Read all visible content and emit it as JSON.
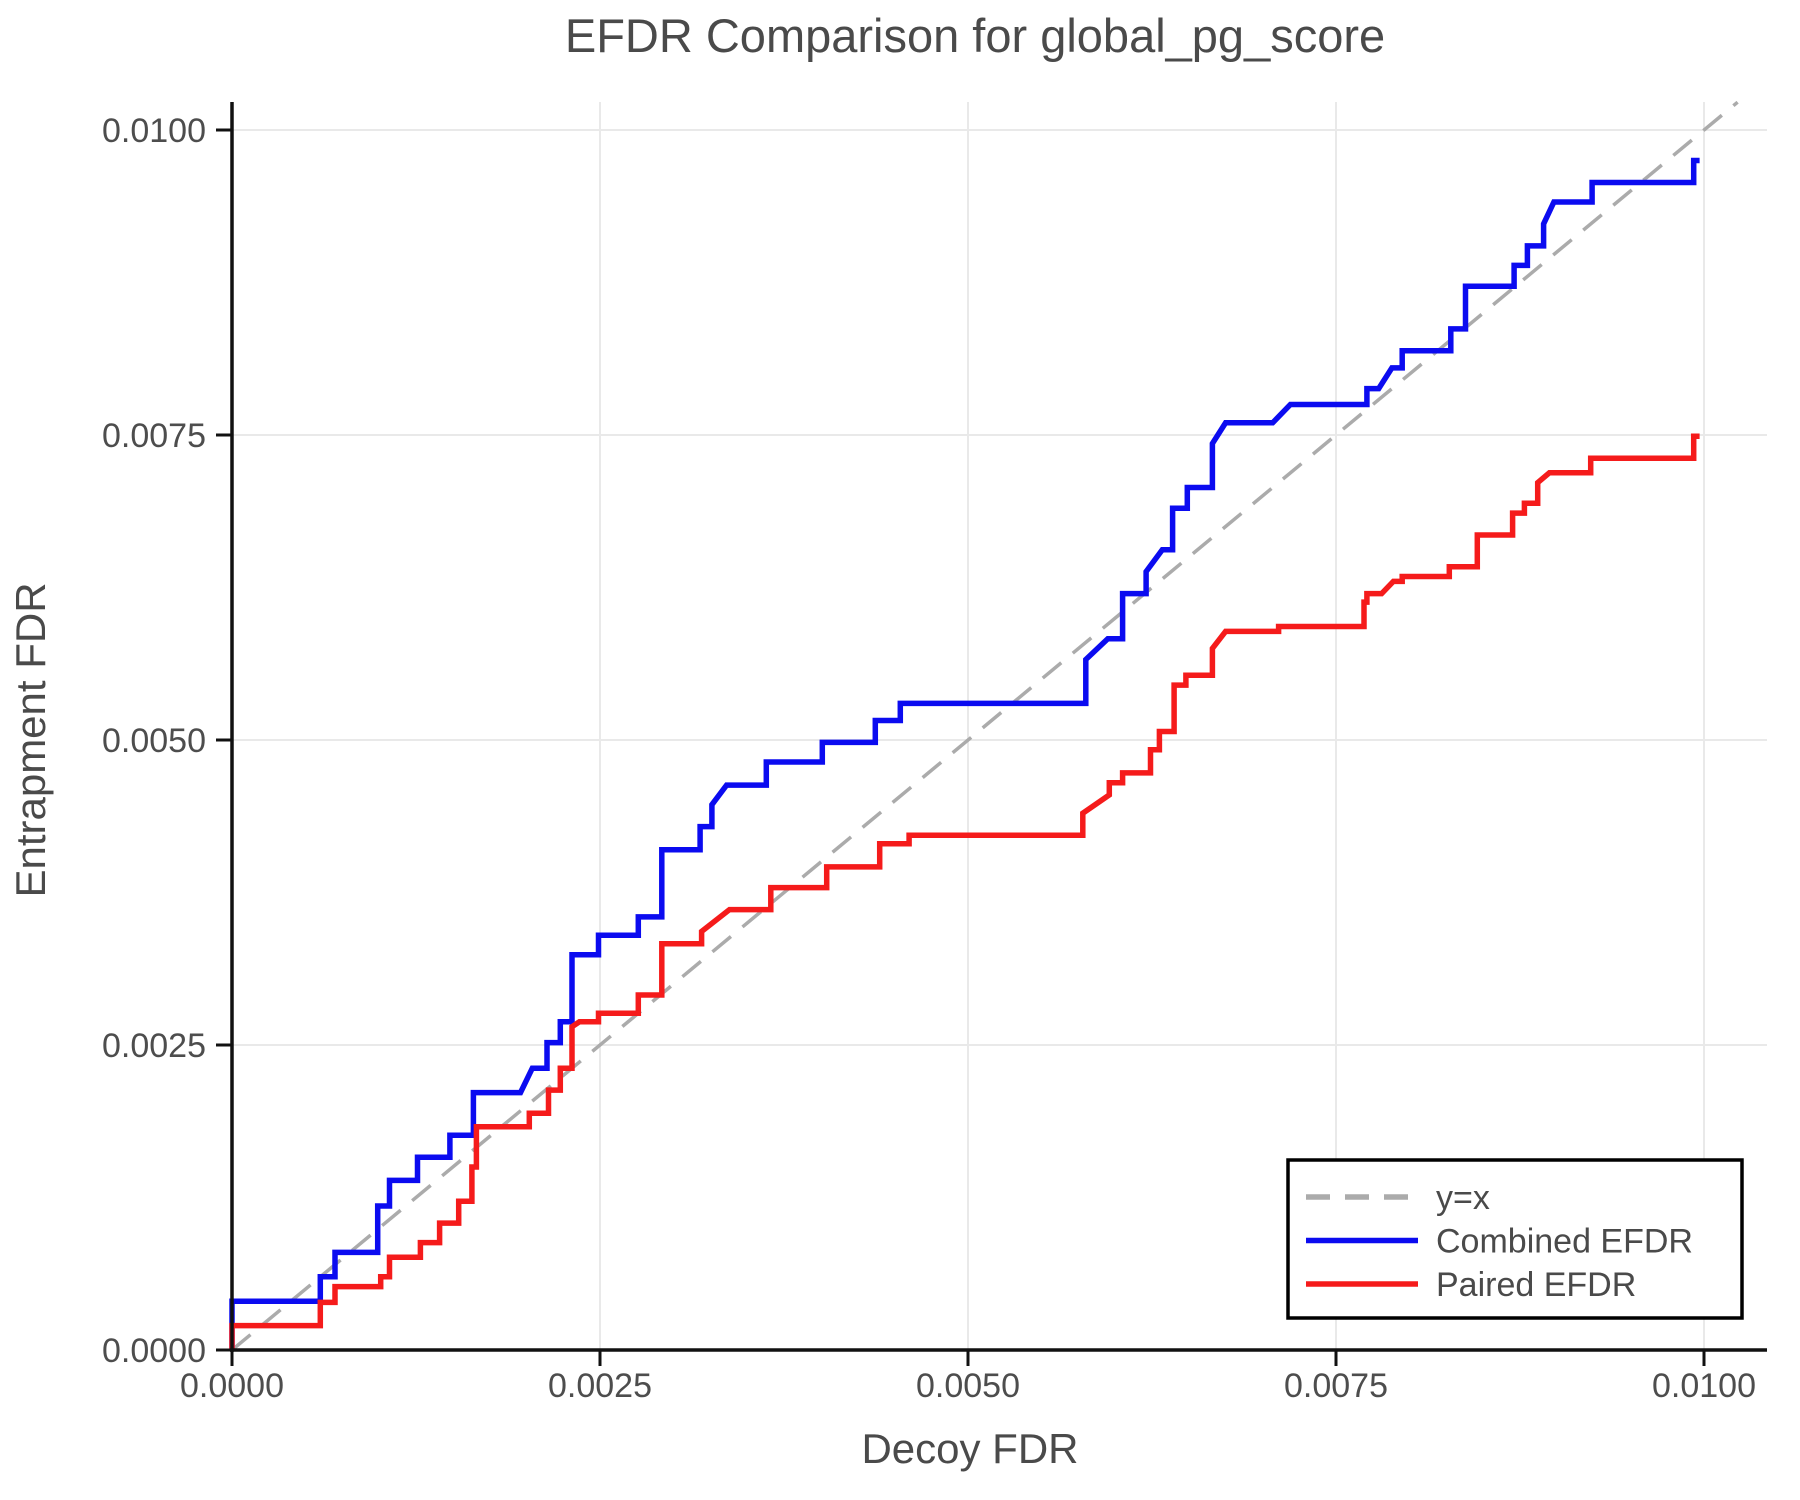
{
  "title": "EFDR Comparison for global_pg_score",
  "chart_data": {
    "type": "line",
    "subtype": "step-curves",
    "title": "EFDR Comparison for global_pg_score",
    "xlabel": "Decoy FDR",
    "ylabel": "Entrapment FDR",
    "xlim": [
      0.0,
      0.01043
    ],
    "ylim": [
      0.0,
      0.01023
    ],
    "grid": true,
    "grid_color": "#e9e9e9",
    "background": "#ffffff",
    "spine_color": "#111111",
    "xticks": {
      "values": [
        0.0,
        0.0025,
        0.005,
        0.0075,
        0.01
      ],
      "labels": [
        "0.0000",
        "0.0025",
        "0.0050",
        "0.0075",
        "0.0100"
      ]
    },
    "yticks": {
      "values": [
        0.0,
        0.0025,
        0.005,
        0.0075,
        0.01
      ],
      "labels": [
        "0.0000",
        "0.0025",
        "0.0050",
        "0.0075",
        "0.0100"
      ]
    },
    "legend": {
      "position": "lower right",
      "border_color": "#000000",
      "items": [
        {
          "label": "y=x",
          "color": "#ababab",
          "dashed": true
        },
        {
          "label": "Combined EFDR",
          "color": "#0b0bf0",
          "dashed": false
        },
        {
          "label": "Paired EFDR",
          "color": "#f51b1b",
          "dashed": false
        }
      ]
    },
    "series": [
      {
        "name": "y=x",
        "role": "reference-line",
        "color": "#ababab",
        "dashed": true,
        "width": 3.5,
        "points": [
          [
            0.0,
            0.0
          ],
          [
            0.010228,
            0.010228
          ]
        ]
      },
      {
        "name": "Combined EFDR",
        "role": "data-line",
        "color": "#0b0bf0",
        "dashed": false,
        "width": 5.5,
        "points": [
          [
            0.0,
            0.0
          ],
          [
            0.0,
            0.0004
          ],
          [
            0.0006,
            0.0004
          ],
          [
            0.0006,
            0.0006
          ],
          [
            0.0007,
            0.0006
          ],
          [
            0.0007,
            0.0008
          ],
          [
            0.00099,
            0.0008
          ],
          [
            0.00099,
            0.00118
          ],
          [
            0.00107,
            0.00118
          ],
          [
            0.00107,
            0.00139
          ],
          [
            0.00126,
            0.00139
          ],
          [
            0.00126,
            0.00158
          ],
          [
            0.00148,
            0.00158
          ],
          [
            0.00148,
            0.00176
          ],
          [
            0.00164,
            0.00176
          ],
          [
            0.00164,
            0.00211
          ],
          [
            0.00196,
            0.00211
          ],
          [
            0.00204,
            0.00231
          ],
          [
            0.00214,
            0.00231
          ],
          [
            0.00214,
            0.00252
          ],
          [
            0.00223,
            0.00252
          ],
          [
            0.00223,
            0.00269
          ],
          [
            0.00231,
            0.00269
          ],
          [
            0.00231,
            0.00324
          ],
          [
            0.00249,
            0.00324
          ],
          [
            0.00249,
            0.0034
          ],
          [
            0.00276,
            0.0034
          ],
          [
            0.00276,
            0.00355
          ],
          [
            0.00292,
            0.00355
          ],
          [
            0.00292,
            0.0041
          ],
          [
            0.00318,
            0.0041
          ],
          [
            0.00318,
            0.00429
          ],
          [
            0.00326,
            0.00429
          ],
          [
            0.00326,
            0.00447
          ],
          [
            0.00336,
            0.00463
          ],
          [
            0.00363,
            0.00463
          ],
          [
            0.00363,
            0.00482
          ],
          [
            0.00401,
            0.00482
          ],
          [
            0.00401,
            0.00498
          ],
          [
            0.00437,
            0.00498
          ],
          [
            0.00437,
            0.00516
          ],
          [
            0.00454,
            0.00516
          ],
          [
            0.00454,
            0.0053
          ],
          [
            0.0058,
            0.0053
          ],
          [
            0.0058,
            0.00566
          ],
          [
            0.00595,
            0.00583
          ],
          [
            0.00605,
            0.00583
          ],
          [
            0.00605,
            0.0062
          ],
          [
            0.00621,
            0.0062
          ],
          [
            0.00621,
            0.00638
          ],
          [
            0.00632,
            0.00656
          ],
          [
            0.00639,
            0.00656
          ],
          [
            0.00639,
            0.0069
          ],
          [
            0.00649,
            0.0069
          ],
          [
            0.00649,
            0.00707
          ],
          [
            0.00666,
            0.00707
          ],
          [
            0.00666,
            0.00743
          ],
          [
            0.00675,
            0.0076
          ],
          [
            0.00707,
            0.0076
          ],
          [
            0.00719,
            0.00775
          ],
          [
            0.00771,
            0.00775
          ],
          [
            0.00771,
            0.00788
          ],
          [
            0.00779,
            0.00788
          ],
          [
            0.00788,
            0.00805
          ],
          [
            0.00795,
            0.00805
          ],
          [
            0.00795,
            0.00819
          ],
          [
            0.00828,
            0.00819
          ],
          [
            0.00828,
            0.00837
          ],
          [
            0.00838,
            0.00837
          ],
          [
            0.00838,
            0.00872
          ],
          [
            0.00871,
            0.00872
          ],
          [
            0.00871,
            0.00889
          ],
          [
            0.0088,
            0.00889
          ],
          [
            0.0088,
            0.00905
          ],
          [
            0.00891,
            0.00905
          ],
          [
            0.00891,
            0.00923
          ],
          [
            0.00898,
            0.00941
          ],
          [
            0.00924,
            0.00941
          ],
          [
            0.00924,
            0.00957
          ],
          [
            0.00993,
            0.00957
          ],
          [
            0.00993,
            0.00975
          ],
          [
            0.00997,
            0.00975
          ]
        ]
      },
      {
        "name": "Paired EFDR",
        "role": "data-line",
        "color": "#f51b1b",
        "dashed": false,
        "width": 5.5,
        "points": [
          [
            0.0,
            0.0
          ],
          [
            0.0,
            0.0002
          ],
          [
            0.0006,
            0.0002
          ],
          [
            0.0006,
            0.00039
          ],
          [
            0.0007,
            0.00039
          ],
          [
            0.0007,
            0.00052
          ],
          [
            0.00101,
            0.00052
          ],
          [
            0.00101,
            0.0006
          ],
          [
            0.00107,
            0.0006
          ],
          [
            0.00107,
            0.00076
          ],
          [
            0.00128,
            0.00076
          ],
          [
            0.00128,
            0.00088
          ],
          [
            0.00141,
            0.00088
          ],
          [
            0.00141,
            0.00104
          ],
          [
            0.00154,
            0.00104
          ],
          [
            0.00154,
            0.00122
          ],
          [
            0.00163,
            0.00122
          ],
          [
            0.00163,
            0.0015
          ],
          [
            0.00166,
            0.0015
          ],
          [
            0.00166,
            0.00183
          ],
          [
            0.00202,
            0.00183
          ],
          [
            0.00202,
            0.00194
          ],
          [
            0.00215,
            0.00194
          ],
          [
            0.00215,
            0.00213
          ],
          [
            0.00223,
            0.00213
          ],
          [
            0.00223,
            0.00231
          ],
          [
            0.00231,
            0.00231
          ],
          [
            0.00231,
            0.00265
          ],
          [
            0.00236,
            0.00269
          ],
          [
            0.00249,
            0.00269
          ],
          [
            0.00249,
            0.00276
          ],
          [
            0.00276,
            0.00276
          ],
          [
            0.00276,
            0.00291
          ],
          [
            0.00292,
            0.00291
          ],
          [
            0.00292,
            0.00333
          ],
          [
            0.00319,
            0.00333
          ],
          [
            0.00319,
            0.00343
          ],
          [
            0.00338,
            0.00361
          ],
          [
            0.00366,
            0.00361
          ],
          [
            0.00366,
            0.00379
          ],
          [
            0.00404,
            0.00379
          ],
          [
            0.00404,
            0.00396
          ],
          [
            0.0044,
            0.00396
          ],
          [
            0.0044,
            0.00415
          ],
          [
            0.0046,
            0.00415
          ],
          [
            0.0046,
            0.00422
          ],
          [
            0.00578,
            0.00422
          ],
          [
            0.00578,
            0.0044
          ],
          [
            0.00596,
            0.00455
          ],
          [
            0.00596,
            0.00465
          ],
          [
            0.00605,
            0.00465
          ],
          [
            0.00605,
            0.00473
          ],
          [
            0.00624,
            0.00473
          ],
          [
            0.00624,
            0.00492
          ],
          [
            0.0063,
            0.00492
          ],
          [
            0.0063,
            0.00507
          ],
          [
            0.0064,
            0.00507
          ],
          [
            0.0064,
            0.00545
          ],
          [
            0.00648,
            0.00545
          ],
          [
            0.00648,
            0.00553
          ],
          [
            0.00666,
            0.00553
          ],
          [
            0.00666,
            0.00575
          ],
          [
            0.00675,
            0.00589
          ],
          [
            0.00711,
            0.00589
          ],
          [
            0.00711,
            0.00593
          ],
          [
            0.00769,
            0.00593
          ],
          [
            0.00769,
            0.00613
          ],
          [
            0.00771,
            0.00613
          ],
          [
            0.00771,
            0.0062
          ],
          [
            0.00781,
            0.0062
          ],
          [
            0.00789,
            0.0063
          ],
          [
            0.00795,
            0.0063
          ],
          [
            0.00795,
            0.00634
          ],
          [
            0.00827,
            0.00634
          ],
          [
            0.00827,
            0.00642
          ],
          [
            0.00846,
            0.00642
          ],
          [
            0.00846,
            0.00668
          ],
          [
            0.0087,
            0.00668
          ],
          [
            0.0087,
            0.00686
          ],
          [
            0.00878,
            0.00686
          ],
          [
            0.00878,
            0.00694
          ],
          [
            0.00887,
            0.00694
          ],
          [
            0.00887,
            0.00711
          ],
          [
            0.00895,
            0.00719
          ],
          [
            0.00923,
            0.00719
          ],
          [
            0.00923,
            0.00731
          ],
          [
            0.00993,
            0.00731
          ],
          [
            0.00993,
            0.00749
          ],
          [
            0.00997,
            0.00749
          ]
        ]
      }
    ]
  }
}
